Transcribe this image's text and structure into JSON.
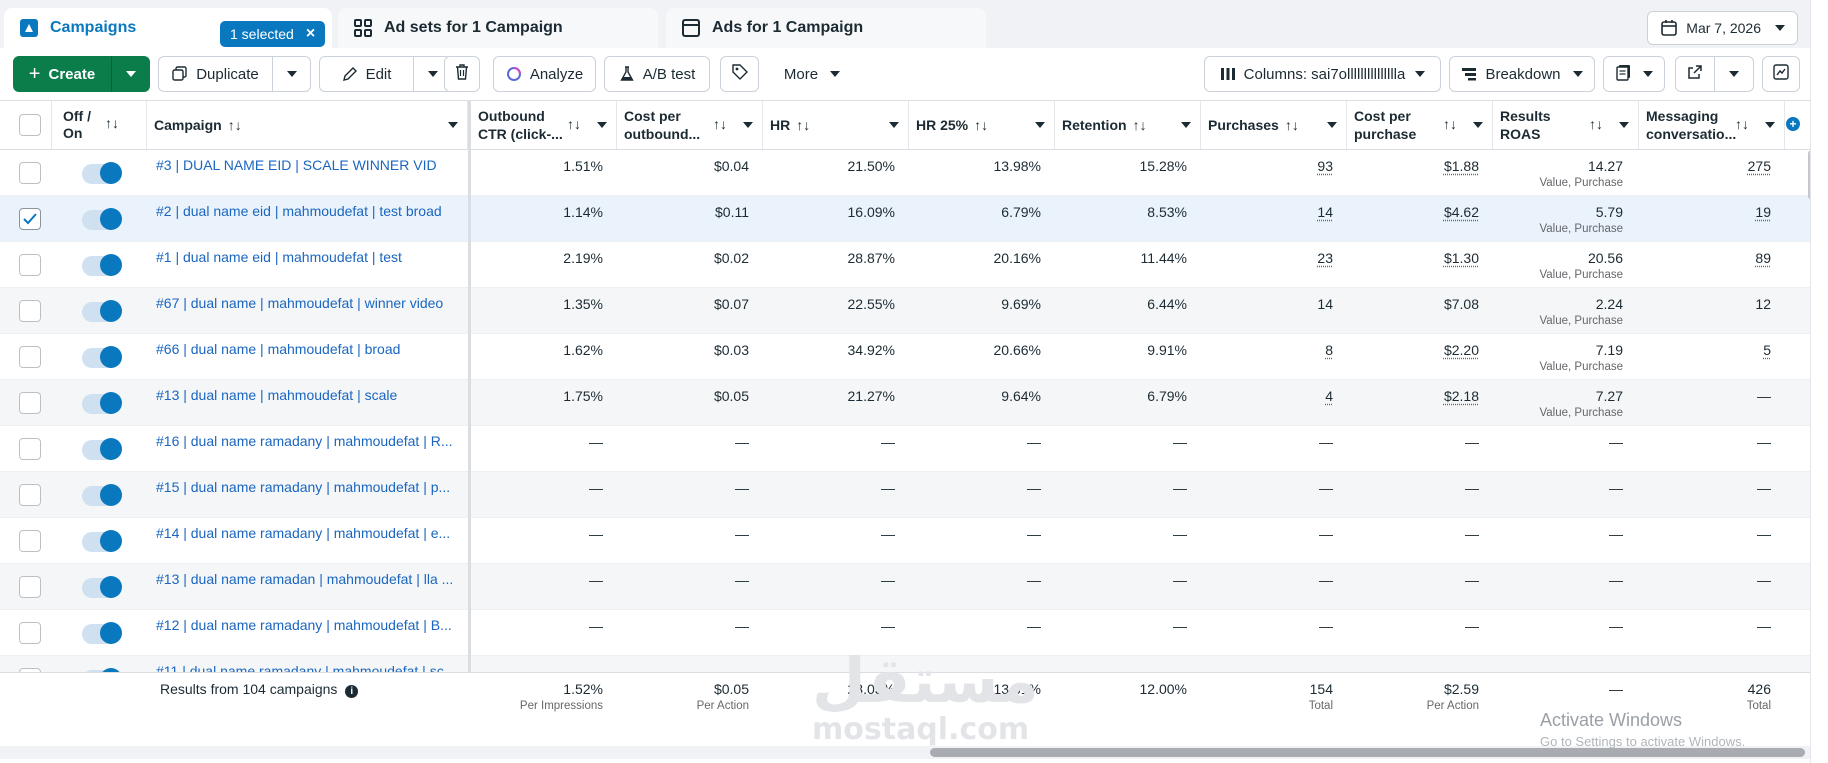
{
  "tabs": {
    "campaigns": "Campaigns",
    "selected": "1 selected",
    "adsets": "Ad sets for 1 Campaign",
    "ads": "Ads for 1 Campaign"
  },
  "date": "Mar 7, 2026",
  "toolbar": {
    "create": "Create",
    "duplicate": "Duplicate",
    "edit": "Edit",
    "analyze": "Analyze",
    "abtest": "A/B test",
    "more": "More",
    "columns": "Columns: sai7ollllllllllllllla",
    "breakdown": "Breakdown"
  },
  "headers": {
    "offon": [
      "Off /",
      "On"
    ],
    "campaign": "Campaign",
    "ctr": [
      "Outbound",
      "CTR (click-..."
    ],
    "cpo": [
      "Cost per",
      "outbound..."
    ],
    "hr": "HR",
    "hr25": "HR 25%",
    "retention": "Retention",
    "purchases": "Purchases",
    "cpp": [
      "Cost per",
      "purchase"
    ],
    "roas": [
      "Results",
      "ROAS"
    ],
    "msg": [
      "Messaging",
      "conversatio..."
    ]
  },
  "rows": [
    {
      "name": "#3 | DUAL NAME EID | SCALE WINNER VID",
      "ctr": "1.51%",
      "cpo": "$0.04",
      "hr": "21.50%",
      "hr25": "13.98%",
      "ret": "15.28%",
      "pur": "93",
      "cpp": "$1.88",
      "roas": "14.27",
      "roas_sub": "Value, Purchase",
      "msg": "275",
      "selected": false
    },
    {
      "name": "#2 | dual name eid | mahmoudefat | test broad",
      "ctr": "1.14%",
      "cpo": "$0.11",
      "hr": "16.09%",
      "hr25": "6.79%",
      "ret": "8.53%",
      "pur": "14",
      "cpp": "$4.62",
      "roas": "5.79",
      "roas_sub": "Value, Purchase",
      "msg": "19",
      "selected": true
    },
    {
      "name": "#1 | dual name eid | mahmoudefat | test",
      "ctr": "2.19%",
      "cpo": "$0.02",
      "hr": "28.87%",
      "hr25": "20.16%",
      "ret": "11.44%",
      "pur": "23",
      "cpp": "$1.30",
      "roas": "20.56",
      "roas_sub": "Value, Purchase",
      "msg": "89",
      "selected": false
    },
    {
      "name": "#67 | dual name | mahmoudefat | winner video",
      "ctr": "1.35%",
      "cpo": "$0.07",
      "hr": "22.55%",
      "hr25": "9.69%",
      "ret": "6.44%",
      "pur": "14",
      "cpp": "$7.08",
      "roas": "2.24",
      "roas_sub": "Value, Purchase",
      "msg": "12",
      "selected": false
    },
    {
      "name": "#66 | dual name | mahmoudefat | broad",
      "ctr": "1.62%",
      "cpo": "$0.03",
      "hr": "34.92%",
      "hr25": "20.66%",
      "ret": "9.91%",
      "pur": "8",
      "cpp": "$2.20",
      "roas": "7.19",
      "roas_sub": "Value, Purchase",
      "msg": "5",
      "selected": false
    },
    {
      "name": "#13 | dual name | mahmoudefat | scale",
      "ctr": "1.75%",
      "cpo": "$0.05",
      "hr": "21.27%",
      "hr25": "9.64%",
      "ret": "6.79%",
      "pur": "4",
      "cpp": "$2.18",
      "roas": "7.27",
      "roas_sub": "Value, Purchase",
      "msg": "—",
      "selected": false
    },
    {
      "name": "#16 | dual name ramadany | mahmoudefat | R...",
      "ctr": "—",
      "cpo": "—",
      "hr": "—",
      "hr25": "—",
      "ret": "—",
      "pur": "—",
      "cpp": "—",
      "roas": "—",
      "roas_sub": "",
      "msg": "—",
      "selected": false
    },
    {
      "name": "#15 | dual name ramadany | mahmoudefat | p...",
      "ctr": "—",
      "cpo": "—",
      "hr": "—",
      "hr25": "—",
      "ret": "—",
      "pur": "—",
      "cpp": "—",
      "roas": "—",
      "roas_sub": "",
      "msg": "—",
      "selected": false
    },
    {
      "name": "#14 | dual name ramadany | mahmoudefat | e...",
      "ctr": "—",
      "cpo": "—",
      "hr": "—",
      "hr25": "—",
      "ret": "—",
      "pur": "—",
      "cpp": "—",
      "roas": "—",
      "roas_sub": "",
      "msg": "—",
      "selected": false
    },
    {
      "name": "#13 | dual name ramadan | mahmoudefat | lla ...",
      "ctr": "—",
      "cpo": "—",
      "hr": "—",
      "hr25": "—",
      "ret": "—",
      "pur": "—",
      "cpp": "—",
      "roas": "—",
      "roas_sub": "",
      "msg": "—",
      "selected": false
    },
    {
      "name": "#12 | dual name ramadany | mahmoudefat | B...",
      "ctr": "—",
      "cpo": "—",
      "hr": "—",
      "hr25": "—",
      "ret": "—",
      "pur": "—",
      "cpp": "—",
      "roas": "—",
      "roas_sub": "",
      "msg": "—",
      "selected": false
    },
    {
      "name": "#11 | dual name ramadany | mahmoudefat | sc...",
      "ctr": "",
      "cpo": "",
      "hr": "",
      "hr25": "",
      "ret": "",
      "pur": "",
      "cpp": "",
      "roas": "",
      "roas_sub": "",
      "msg": "",
      "selected": false
    }
  ],
  "footer": {
    "label": "Results from 104 campaigns",
    "ctr": "1.52%",
    "ctr_sub": "Per Impressions",
    "cpo": "$0.05",
    "cpo_sub": "Per Action",
    "hr": "23.03%",
    "hr25": "13.61%",
    "ret": "12.00%",
    "pur": "154",
    "pur_sub": "Total",
    "cpp": "$2.59",
    "cpp_sub": "Per Action",
    "roas": "—",
    "msg": "426",
    "msg_sub": "Total"
  },
  "watermark": {
    "arabic": "مستقل",
    "latin": "mostaql.com"
  },
  "activation": {
    "title": "Activate Windows",
    "sub": "Go to Settings to activate Windows."
  },
  "colors": {
    "accent": "#0a78be",
    "create": "#0a7d4b",
    "link": "#1a66c0"
  }
}
